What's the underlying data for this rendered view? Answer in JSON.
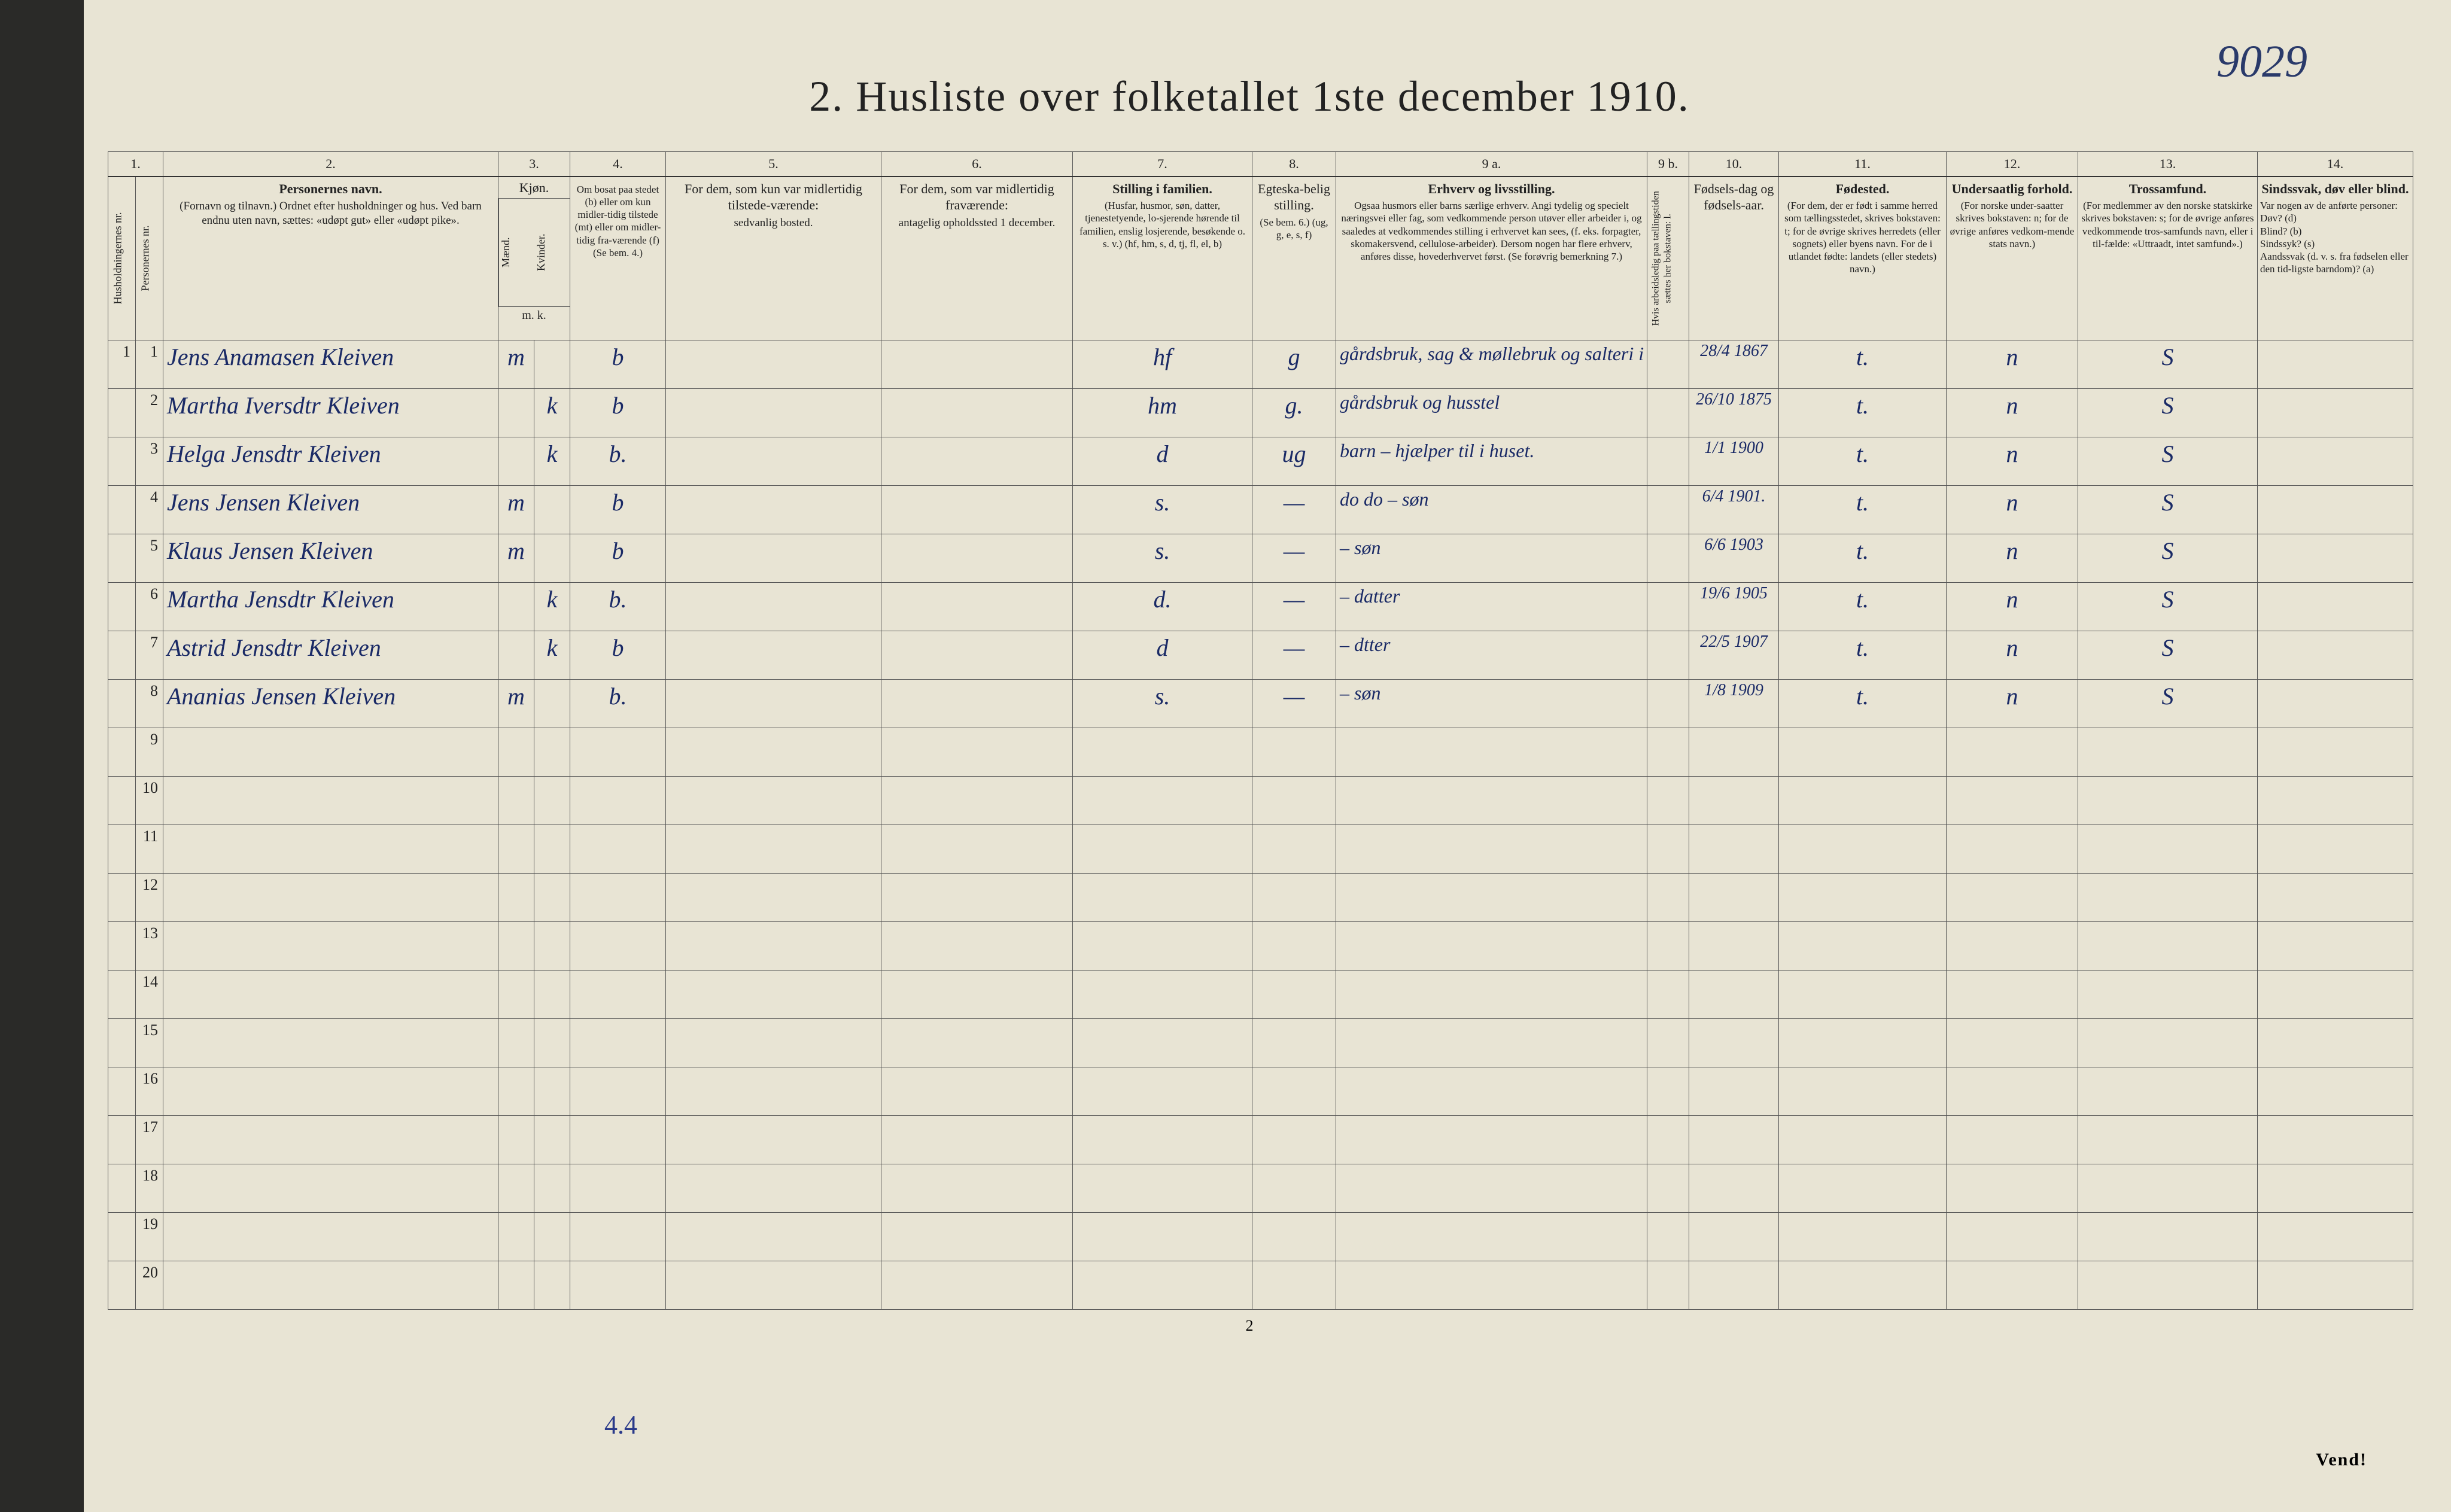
{
  "corner_number": "9029",
  "title": "2.  Husliste over folketallet 1ste december 1910.",
  "footer_page": "2",
  "vend": "Vend!",
  "below_table": "4.4",
  "col_numbers": [
    "1.",
    "",
    "2.",
    "3.",
    "",
    "4.",
    "5.",
    "6.",
    "7.",
    "8.",
    "9 a.",
    "9 b.",
    "10.",
    "11.",
    "12.",
    "13.",
    "14."
  ],
  "headers": {
    "c1a": "Husholdningernes nr.",
    "c1b": "Personernes nr.",
    "c2": "Personernes navn.",
    "c2_sub": "(Fornavn og tilnavn.)\nOrdnet efter husholdninger og hus.\nVed barn endnu uten navn, sættes: «udøpt gut» eller «udøpt pike».",
    "c3": "Kjøn.",
    "c3a": "Mænd.",
    "c3b": "Kvinder.",
    "c3_foot": "m.  k.",
    "c4": "Om bosat paa stedet (b) eller om kun midler-tidig tilstede (mt) eller om midler-tidig fra-værende (f) (Se bem. 4.)",
    "c5": "For dem, som kun var midlertidig tilstede-værende:",
    "c5_sub": "sedvanlig bosted.",
    "c6": "For dem, som var midlertidig fraværende:",
    "c6_sub": "antagelig opholdssted 1 december.",
    "c7": "Stilling i familien.",
    "c7_sub": "(Husfar, husmor, søn, datter, tjenestetyende, lo-sjerende hørende til familien, enslig losjerende, besøkende o. s. v.)\n(hf, hm, s, d, tj, fl, el, b)",
    "c8": "Egteska-belig stilling.",
    "c8_sub": "(Se bem. 6.)\n(ug, g, e, s, f)",
    "c9a": "Erhverv og livsstilling.",
    "c9a_sub": "Ogsaa husmors eller barns særlige erhverv. Angi tydelig og specielt næringsvei eller fag, som vedkommende person utøver eller arbeider i, og saaledes at vedkommendes stilling i erhvervet kan sees, (f. eks. forpagter, skomakersvend, cellulose-arbeider). Dersom nogen har flere erhverv, anføres disse, hovederhvervet først. (Se forøvrig bemerkning 7.)",
    "c9b": "Hvis arbeidsledig paa tællingstiden sættes her bokstaven: l.",
    "c10": "Fødsels-dag og fødsels-aar.",
    "c11": "Fødested.",
    "c11_sub": "(For dem, der er født i samme herred som tællingsstedet, skrives bokstaven: t; for de øvrige skrives herredets (eller sognets) eller byens navn. For de i utlandet fødte: landets (eller stedets) navn.)",
    "c12": "Undersaatlig forhold.",
    "c12_sub": "(For norske under-saatter skrives bokstaven: n; for de øvrige anføres vedkom-mende stats navn.)",
    "c13": "Trossamfund.",
    "c13_sub": "(For medlemmer av den norske statskirke skrives bokstaven: s; for de øvrige anføres vedkommende tros-samfunds navn, eller i til-fælde: «Uttraadt, intet samfund».)",
    "c14": "Sindssvak, døv eller blind.",
    "c14_sub": "Var nogen av de anførte personer:\nDøv?        (d)\nBlind?      (b)\nSindssyk?   (s)\nAandssvak (d. v. s. fra fødselen eller den tid-ligste barndom)?  (a)"
  },
  "rows": [
    {
      "n": "1",
      "name": "Jens Anamasen Kleiven",
      "m": "m",
      "k": "",
      "b": "b",
      "c5": "",
      "c6": "",
      "fam": "hf",
      "eg": "g",
      "erh": "gårdsbruk, sag & møllebruk og salteri i fiskeværet Kalvåg",
      "l": "",
      "dob": "28/4 1867",
      "fs": "t.",
      "us": "n",
      "tro": "S",
      "ss": ""
    },
    {
      "n": "2",
      "name": "Martha Iversdtr Kleiven",
      "m": "",
      "k": "k",
      "b": "b",
      "c5": "",
      "c6": "",
      "fam": "hm",
      "eg": "g.",
      "erh": "gårdsbruk og husstel",
      "l": "",
      "dob": "26/10 1875",
      "fs": "t.",
      "us": "n",
      "tro": "S",
      "ss": ""
    },
    {
      "n": "3",
      "name": "Helga Jensdtr Kleiven",
      "m": "",
      "k": "k",
      "b": "b.",
      "c5": "",
      "c6": "",
      "fam": "d",
      "eg": "ug",
      "erh": "barn – hjælper til i huset.",
      "l": "",
      "dob": "1/1 1900",
      "fs": "t.",
      "us": "n",
      "tro": "S",
      "ss": ""
    },
    {
      "n": "4",
      "name": "Jens Jensen Kleiven",
      "m": "m",
      "k": "",
      "b": "b",
      "c5": "",
      "c6": "",
      "fam": "s.",
      "eg": "—",
      "erh": "do    do – søn",
      "l": "",
      "dob": "6/4 1901.",
      "fs": "t.",
      "us": "n",
      "tro": "S",
      "ss": ""
    },
    {
      "n": "5",
      "name": "Klaus Jensen Kleiven",
      "m": "m",
      "k": "",
      "b": "b",
      "c5": "",
      "c6": "",
      "fam": "s.",
      "eg": "—",
      "erh": "– søn",
      "l": "",
      "dob": "6/6 1903",
      "fs": "t.",
      "us": "n",
      "tro": "S",
      "ss": ""
    },
    {
      "n": "6",
      "name": "Martha Jensdtr Kleiven",
      "m": "",
      "k": "k",
      "b": "b.",
      "c5": "",
      "c6": "",
      "fam": "d.",
      "eg": "—",
      "erh": "– datter",
      "l": "",
      "dob": "19/6 1905",
      "fs": "t.",
      "us": "n",
      "tro": "S",
      "ss": ""
    },
    {
      "n": "7",
      "name": "Astrid Jensdtr Kleiven",
      "m": "",
      "k": "k",
      "b": "b",
      "c5": "",
      "c6": "",
      "fam": "d",
      "eg": "—",
      "erh": "– dtter",
      "l": "",
      "dob": "22/5 1907",
      "fs": "t.",
      "us": "n",
      "tro": "S",
      "ss": ""
    },
    {
      "n": "8",
      "name": "Ananias Jensen Kleiven",
      "m": "m",
      "k": "",
      "b": "b.",
      "c5": "",
      "c6": "",
      "fam": "s.",
      "eg": "—",
      "erh": "– søn",
      "l": "",
      "dob": "1/8 1909",
      "fs": "t.",
      "us": "n",
      "tro": "S",
      "ss": ""
    }
  ],
  "empty_rows": [
    9,
    10,
    11,
    12,
    13,
    14,
    15,
    16,
    17,
    18,
    19,
    20
  ],
  "colors": {
    "page_bg": "#e8e4d4",
    "ink": "#222",
    "script": "#1a2a66",
    "border": "#555"
  }
}
